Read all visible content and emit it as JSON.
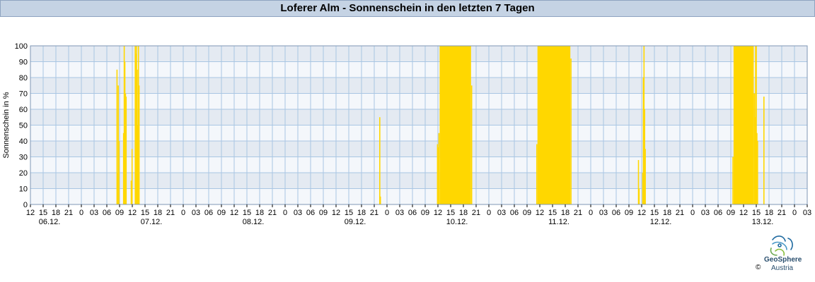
{
  "header": {
    "title": "Loferer Alm - Sonnenschein in den letzten 7 Tagen"
  },
  "footer": {
    "logo_name": "GeoSphere",
    "logo_sub": "Austria",
    "copyright": "©"
  },
  "colors": {
    "bar": "#ffd700",
    "band_dark": "#e4eaf2",
    "band_light": "#f4f7fb",
    "grid": "#a9c6e3",
    "title_bg": "#c5d3e4"
  },
  "chart_data": {
    "type": "bar",
    "title": "Loferer Alm - Sonnenschein in den letzten 7 Tagen",
    "ylabel": "Sonnenschein in %",
    "xlabel": "",
    "ylim": [
      0,
      100
    ],
    "x_range_hours": [
      0,
      183
    ],
    "yticks": [
      0,
      10,
      20,
      30,
      40,
      50,
      60,
      70,
      80,
      90,
      100
    ],
    "hour_tick_labels": [
      "12",
      "15",
      "18",
      "21",
      "0",
      "03",
      "06",
      "09",
      "12",
      "15",
      "18",
      "21",
      "0",
      "03",
      "06",
      "09",
      "12",
      "15",
      "18",
      "21",
      "0",
      "03",
      "06",
      "09",
      "12",
      "15",
      "18",
      "21",
      "0",
      "03",
      "06",
      "09",
      "12",
      "15",
      "18",
      "21",
      "0",
      "03",
      "06",
      "09",
      "12",
      "15",
      "18",
      "21",
      "0",
      "03",
      "06",
      "09",
      "12",
      "15",
      "18",
      "21",
      "0",
      "03",
      "06",
      "09",
      "12",
      "15",
      "18",
      "21",
      "0",
      "03"
    ],
    "day_labels": [
      {
        "label": "06.12.",
        "hour": 4.5
      },
      {
        "label": "07.12.",
        "hour": 28.5
      },
      {
        "label": "08.12.",
        "hour": 52.5
      },
      {
        "label": "09.12.",
        "hour": 76.5
      },
      {
        "label": "10.12.",
        "hour": 100.5
      },
      {
        "label": "11.12.",
        "hour": 124.5
      },
      {
        "label": "12.12.",
        "hour": 148.5
      },
      {
        "label": "13.12.",
        "hour": 172.5
      }
    ],
    "grid": true,
    "legend": "none",
    "sunshine_bars": [
      {
        "h": 20.4,
        "v": 85
      },
      {
        "h": 20.55,
        "v": 20
      },
      {
        "h": 20.7,
        "v": 75
      },
      {
        "h": 20.85,
        "v": 40
      },
      {
        "h": 21.95,
        "v": 45
      },
      {
        "h": 22.1,
        "v": 100
      },
      {
        "h": 22.25,
        "v": 90
      },
      {
        "h": 22.4,
        "v": 70
      },
      {
        "h": 22.55,
        "v": 68
      },
      {
        "h": 23.75,
        "v": 15
      },
      {
        "h": 23.95,
        "v": 35
      },
      {
        "h": 24.7,
        "v": 100
      },
      {
        "h": 24.85,
        "v": 95
      },
      {
        "h": 25.0,
        "v": 100
      },
      {
        "h": 25.15,
        "v": 85
      },
      {
        "h": 25.3,
        "v": 50
      },
      {
        "h": 25.45,
        "v": 100
      },
      {
        "h": 25.6,
        "v": 75
      },
      {
        "h": 82.3,
        "v": 55
      },
      {
        "h": 82.45,
        "v": 5
      },
      {
        "h": 95.9,
        "v": 38
      },
      {
        "h": 96.1,
        "v": 36
      },
      {
        "h": 96.25,
        "v": 45
      },
      {
        "from": 96.4,
        "to": 103.8,
        "v": 100
      },
      {
        "h": 103.95,
        "v": 75
      },
      {
        "h": 119.3,
        "v": 38
      },
      {
        "from": 119.45,
        "to": 127.2,
        "v": 100
      },
      {
        "h": 127.35,
        "v": 92
      },
      {
        "h": 143.25,
        "v": 28
      },
      {
        "h": 143.4,
        "v": 10
      },
      {
        "h": 144.25,
        "v": 20
      },
      {
        "h": 144.4,
        "v": 80
      },
      {
        "h": 144.55,
        "v": 100
      },
      {
        "h": 144.7,
        "v": 60
      },
      {
        "h": 144.85,
        "v": 35
      },
      {
        "h": 165.5,
        "v": 30
      },
      {
        "from": 165.65,
        "to": 170.4,
        "v": 100
      },
      {
        "h": 170.55,
        "v": 70
      },
      {
        "h": 170.7,
        "v": 55
      },
      {
        "h": 170.85,
        "v": 100
      },
      {
        "h": 171.0,
        "v": 100
      },
      {
        "h": 171.15,
        "v": 45
      },
      {
        "h": 171.3,
        "v": 40
      },
      {
        "h": 172.8,
        "v": 68
      }
    ]
  }
}
